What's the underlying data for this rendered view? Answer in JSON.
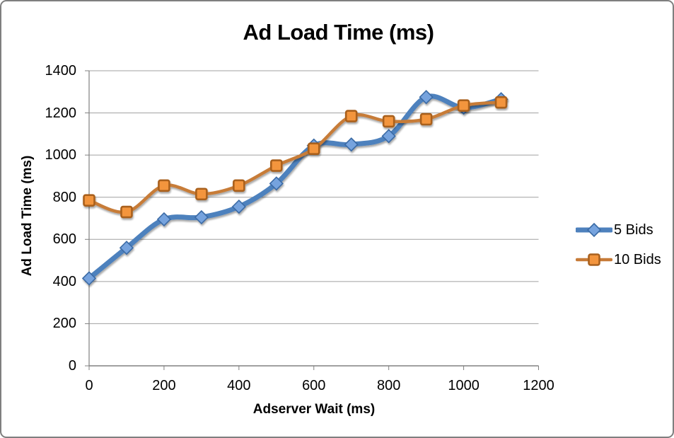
{
  "frame": {
    "background": "#ffffff",
    "border_color": "#7f7f7f"
  },
  "chart_data": {
    "type": "line",
    "title": "Ad Load Time (ms)",
    "xlabel": "Adserver Wait (ms)",
    "ylabel": "Ad Load Time (ms)",
    "x": [
      0,
      100,
      200,
      300,
      400,
      500,
      600,
      700,
      800,
      900,
      1000,
      1100
    ],
    "series": [
      {
        "name": "5 Bids",
        "marker": "diamond",
        "line_color": "#4e81bd",
        "marker_fill": "#76a3de",
        "marker_stroke": "#3a6ba5",
        "values": [
          415,
          560,
          695,
          705,
          755,
          865,
          1045,
          1050,
          1090,
          1275,
          1225,
          1265
        ]
      },
      {
        "name": "10 Bids",
        "marker": "square",
        "line_color": "#c77b38",
        "marker_fill": "#f3953e",
        "marker_stroke": "#a9611f",
        "values": [
          785,
          730,
          855,
          815,
          855,
          950,
          1030,
          1185,
          1160,
          1170,
          1235,
          1250
        ]
      }
    ],
    "xlim": [
      0,
      1200
    ],
    "ylim": [
      0,
      1400
    ],
    "x_ticks": [
      0,
      200,
      400,
      600,
      800,
      1000,
      1200
    ],
    "y_ticks": [
      0,
      200,
      400,
      600,
      800,
      1000,
      1200,
      1400
    ],
    "grid": true,
    "smooth_lines": true,
    "legend_position": "right",
    "gridline_color": "#a0a0a0",
    "axis_color": "#808080",
    "text_color": "#000000"
  }
}
